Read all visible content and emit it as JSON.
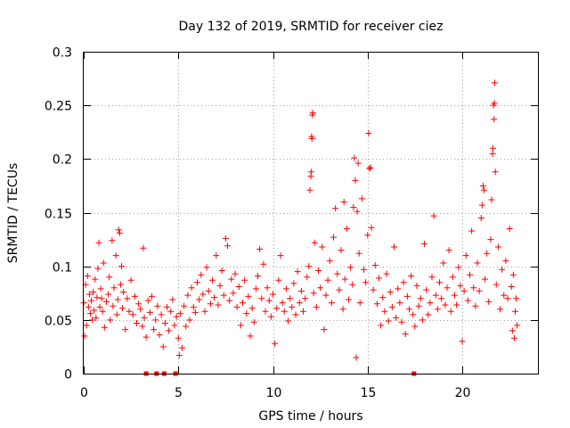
{
  "chart_data": {
    "type": "scatter",
    "title": "Day 132 of 2019, SRMTID for receiver ciez",
    "xlabel": "GPS time / hours",
    "ylabel": "SRMTID / TECUs",
    "xlim": [
      0,
      24
    ],
    "ylim": [
      0,
      0.3
    ],
    "x_ticks": [
      0,
      5,
      10,
      15,
      20
    ],
    "x_tick_labels": [
      "0",
      "5",
      "10",
      "15",
      "20"
    ],
    "y_ticks": [
      0,
      0.05,
      0.1,
      0.15,
      0.2,
      0.25,
      0.3
    ],
    "y_tick_labels": [
      "0",
      "0.05",
      "0.1",
      "0.15",
      "0.2",
      "0.25",
      "0.3"
    ],
    "grid": true,
    "marker": "plus",
    "color": "#ff0000",
    "series": [
      {
        "name": "SRMTID",
        "points": [
          [
            0.0,
            0.066
          ],
          [
            0.05,
            0.035
          ],
          [
            0.1,
            0.083
          ],
          [
            0.15,
            0.045
          ],
          [
            0.2,
            0.091
          ],
          [
            0.25,
            0.062
          ],
          [
            0.3,
            0.074
          ],
          [
            0.35,
            0.056
          ],
          [
            0.4,
            0.068
          ],
          [
            0.45,
            0.05
          ],
          [
            0.5,
            0.076
          ],
          [
            0.55,
            0.059
          ],
          [
            0.6,
            0.088
          ],
          [
            0.65,
            0.052
          ],
          [
            0.7,
            0.071
          ],
          [
            0.75,
            0.098
          ],
          [
            0.8,
            0.122
          ],
          [
            0.85,
            0.062
          ],
          [
            0.9,
            0.079
          ],
          [
            0.95,
            0.07
          ],
          [
            1.0,
            0.058
          ],
          [
            1.05,
            0.103
          ],
          [
            1.1,
            0.043
          ],
          [
            1.2,
            0.067
          ],
          [
            1.3,
            0.074
          ],
          [
            1.35,
            0.09
          ],
          [
            1.4,
            0.05
          ],
          [
            1.5,
            0.124
          ],
          [
            1.55,
            0.063
          ],
          [
            1.6,
            0.08
          ],
          [
            1.7,
            0.11
          ],
          [
            1.75,
            0.055
          ],
          [
            1.8,
            0.069
          ],
          [
            1.85,
            0.134
          ],
          [
            1.9,
            0.131
          ],
          [
            1.95,
            0.083
          ],
          [
            2.0,
            0.1
          ],
          [
            2.05,
            0.061
          ],
          [
            2.1,
            0.076
          ],
          [
            2.2,
            0.041
          ],
          [
            2.3,
            0.07
          ],
          [
            2.4,
            0.058
          ],
          [
            2.5,
            0.087
          ],
          [
            2.6,
            0.055
          ],
          [
            2.7,
            0.072
          ],
          [
            2.8,
            0.047
          ],
          [
            2.9,
            0.065
          ],
          [
            3.0,
            0.06
          ],
          [
            3.1,
            0.044
          ],
          [
            3.15,
            0.117
          ],
          [
            3.2,
            0.052
          ],
          [
            3.3,
            0.034
          ],
          [
            3.4,
            0.068
          ],
          [
            3.5,
            0.057
          ],
          [
            3.6,
            0.072
          ],
          [
            3.7,
            0.041
          ],
          [
            3.8,
            0.05
          ],
          [
            3.9,
            0.063
          ],
          [
            4.0,
            0.036
          ],
          [
            4.1,
            0.055
          ],
          [
            4.2,
            0.025
          ],
          [
            4.3,
            0.047
          ],
          [
            4.4,
            0.062
          ],
          [
            4.5,
            0.04
          ],
          [
            4.6,
            0.058
          ],
          [
            4.7,
            0.069
          ],
          [
            4.8,
            0.045
          ],
          [
            4.9,
            0.053
          ],
          [
            5.0,
            0.033
          ],
          [
            5.05,
            0.017
          ],
          [
            5.1,
            0.056
          ],
          [
            5.2,
            0.024
          ],
          [
            5.3,
            0.063
          ],
          [
            5.4,
            0.044
          ],
          [
            5.5,
            0.073
          ],
          [
            5.6,
            0.05
          ],
          [
            5.7,
            0.08
          ],
          [
            5.8,
            0.062
          ],
          [
            5.9,
            0.057
          ],
          [
            6.0,
            0.085
          ],
          [
            6.1,
            0.069
          ],
          [
            6.2,
            0.092
          ],
          [
            6.3,
            0.074
          ],
          [
            6.4,
            0.058
          ],
          [
            6.5,
            0.099
          ],
          [
            6.6,
            0.077
          ],
          [
            6.7,
            0.065
          ],
          [
            6.8,
            0.087
          ],
          [
            6.9,
            0.071
          ],
          [
            7.0,
            0.11
          ],
          [
            7.1,
            0.064
          ],
          [
            7.2,
            0.082
          ],
          [
            7.3,
            0.096
          ],
          [
            7.4,
            0.073
          ],
          [
            7.5,
            0.126
          ],
          [
            7.6,
            0.119
          ],
          [
            7.7,
            0.068
          ],
          [
            7.8,
            0.088
          ],
          [
            7.9,
            0.075
          ],
          [
            8.0,
            0.093
          ],
          [
            8.1,
            0.062
          ],
          [
            8.2,
            0.081
          ],
          [
            8.3,
            0.045
          ],
          [
            8.4,
            0.066
          ],
          [
            8.5,
            0.087
          ],
          [
            8.6,
            0.056
          ],
          [
            8.7,
            0.072
          ],
          [
            8.8,
            0.035
          ],
          [
            8.9,
            0.061
          ],
          [
            9.0,
            0.048
          ],
          [
            9.1,
            0.079
          ],
          [
            9.2,
            0.091
          ],
          [
            9.3,
            0.116
          ],
          [
            9.4,
            0.07
          ],
          [
            9.5,
            0.102
          ],
          [
            9.6,
            0.058
          ],
          [
            9.7,
            0.08
          ],
          [
            9.8,
            0.068
          ],
          [
            9.9,
            0.053
          ],
          [
            10.0,
            0.074
          ],
          [
            10.1,
            0.028
          ],
          [
            10.2,
            0.061
          ],
          [
            10.3,
            0.087
          ],
          [
            10.4,
            0.11
          ],
          [
            10.5,
            0.066
          ],
          [
            10.6,
            0.058
          ],
          [
            10.7,
            0.079
          ],
          [
            10.8,
            0.049
          ],
          [
            10.9,
            0.07
          ],
          [
            11.0,
            0.062
          ],
          [
            11.1,
            0.084
          ],
          [
            11.2,
            0.055
          ],
          [
            11.3,
            0.095
          ],
          [
            11.4,
            0.066
          ],
          [
            11.5,
            0.077
          ],
          [
            11.6,
            0.058
          ],
          [
            11.7,
            0.07
          ],
          [
            11.8,
            0.09
          ],
          [
            11.9,
            0.1
          ],
          [
            11.95,
            0.171
          ],
          [
            12.0,
            0.184
          ],
          [
            12.02,
            0.188
          ],
          [
            12.04,
            0.221
          ],
          [
            12.06,
            0.219
          ],
          [
            12.08,
            0.241
          ],
          [
            12.1,
            0.243
          ],
          [
            12.15,
            0.075
          ],
          [
            12.2,
            0.122
          ],
          [
            12.3,
            0.062
          ],
          [
            12.4,
            0.096
          ],
          [
            12.5,
            0.08
          ],
          [
            12.6,
            0.118
          ],
          [
            12.7,
            0.041
          ],
          [
            12.8,
            0.073
          ],
          [
            12.9,
            0.087
          ],
          [
            13.0,
            0.105
          ],
          [
            13.1,
            0.066
          ],
          [
            13.2,
            0.127
          ],
          [
            13.3,
            0.154
          ],
          [
            13.4,
            0.093
          ],
          [
            13.5,
            0.078
          ],
          [
            13.6,
            0.115
          ],
          [
            13.7,
            0.06
          ],
          [
            13.75,
            0.16
          ],
          [
            13.8,
            0.088
          ],
          [
            13.9,
            0.135
          ],
          [
            14.0,
            0.069
          ],
          [
            14.1,
            0.099
          ],
          [
            14.2,
            0.083
          ],
          [
            14.25,
            0.155
          ],
          [
            14.3,
            0.201
          ],
          [
            14.35,
            0.18
          ],
          [
            14.4,
            0.015
          ],
          [
            14.45,
            0.151
          ],
          [
            14.5,
            0.196
          ],
          [
            14.55,
            0.112
          ],
          [
            14.6,
            0.066
          ],
          [
            14.7,
            0.163
          ],
          [
            14.8,
            0.097
          ],
          [
            14.9,
            0.085
          ],
          [
            15.0,
            0.129
          ],
          [
            15.05,
            0.224
          ],
          [
            15.1,
            0.191
          ],
          [
            15.15,
            0.192
          ],
          [
            15.2,
            0.136
          ],
          [
            15.3,
            0.078
          ],
          [
            15.4,
            0.101
          ],
          [
            15.5,
            0.065
          ],
          [
            15.6,
            0.089
          ],
          [
            15.7,
            0.045
          ],
          [
            15.8,
            0.071
          ],
          [
            15.9,
            0.058
          ],
          [
            16.0,
            0.093
          ],
          [
            16.1,
            0.049
          ],
          [
            16.2,
            0.076
          ],
          [
            16.3,
            0.062
          ],
          [
            16.4,
            0.118
          ],
          [
            16.5,
            0.052
          ],
          [
            16.6,
            0.079
          ],
          [
            16.7,
            0.066
          ],
          [
            16.8,
            0.048
          ],
          [
            16.9,
            0.085
          ],
          [
            17.0,
            0.037
          ],
          [
            17.1,
            0.072
          ],
          [
            17.2,
            0.06
          ],
          [
            17.3,
            0.091
          ],
          [
            17.4,
            0.055
          ],
          [
            17.5,
            0.044
          ],
          [
            17.6,
            0.082
          ],
          [
            17.7,
            0.063
          ],
          [
            17.8,
            0.07
          ],
          [
            17.9,
            0.05
          ],
          [
            18.0,
            0.121
          ],
          [
            18.1,
            0.078
          ],
          [
            18.2,
            0.055
          ],
          [
            18.3,
            0.066
          ],
          [
            18.4,
            0.09
          ],
          [
            18.5,
            0.147
          ],
          [
            18.6,
            0.073
          ],
          [
            18.7,
            0.06
          ],
          [
            18.8,
            0.085
          ],
          [
            18.9,
            0.07
          ],
          [
            19.0,
            0.103
          ],
          [
            19.1,
            0.064
          ],
          [
            19.2,
            0.08
          ],
          [
            19.3,
            0.115
          ],
          [
            19.4,
            0.058
          ],
          [
            19.5,
            0.09
          ],
          [
            19.6,
            0.073
          ],
          [
            19.7,
            0.064
          ],
          [
            19.8,
            0.099
          ],
          [
            19.9,
            0.082
          ],
          [
            20.0,
            0.03
          ],
          [
            20.1,
            0.077
          ],
          [
            20.2,
            0.11
          ],
          [
            20.3,
            0.068
          ],
          [
            20.4,
            0.092
          ],
          [
            20.5,
            0.133
          ],
          [
            20.6,
            0.08
          ],
          [
            20.7,
            0.063
          ],
          [
            20.8,
            0.103
          ],
          [
            20.9,
            0.077
          ],
          [
            21.0,
            0.145
          ],
          [
            21.05,
            0.157
          ],
          [
            21.1,
            0.175
          ],
          [
            21.15,
            0.171
          ],
          [
            21.2,
            0.088
          ],
          [
            21.3,
            0.112
          ],
          [
            21.4,
            0.067
          ],
          [
            21.5,
            0.125
          ],
          [
            21.55,
            0.162
          ],
          [
            21.6,
            0.205
          ],
          [
            21.62,
            0.21
          ],
          [
            21.65,
            0.25
          ],
          [
            21.68,
            0.237
          ],
          [
            21.7,
            0.252
          ],
          [
            21.72,
            0.271
          ],
          [
            21.75,
            0.188
          ],
          [
            21.8,
            0.083
          ],
          [
            21.9,
            0.118
          ],
          [
            22.0,
            0.06
          ],
          [
            22.1,
            0.097
          ],
          [
            22.2,
            0.073
          ],
          [
            22.3,
            0.105
          ],
          [
            22.4,
            0.07
          ],
          [
            22.5,
            0.135
          ],
          [
            22.6,
            0.081
          ],
          [
            22.65,
            0.04
          ],
          [
            22.7,
            0.092
          ],
          [
            22.75,
            0.033
          ],
          [
            22.8,
            0.058
          ],
          [
            22.85,
            0.07
          ],
          [
            22.9,
            0.045
          ]
        ]
      }
    ],
    "zero_markers_x": [
      3.3,
      3.85,
      4.25,
      4.85,
      17.45
    ]
  }
}
